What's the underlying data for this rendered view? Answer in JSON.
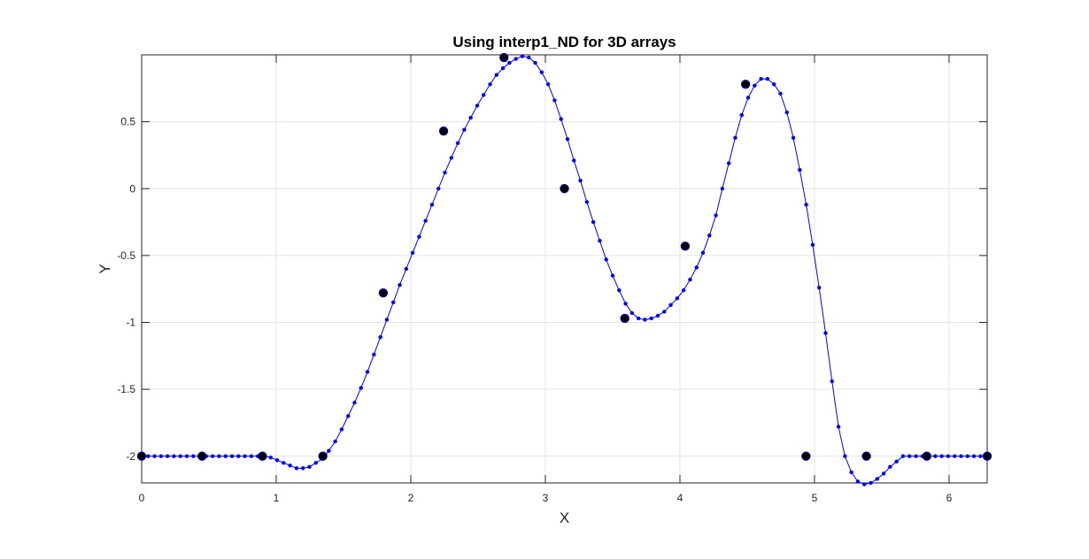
{
  "chart_data": {
    "type": "line",
    "title": "Using interp1_ND for 3D arrays",
    "xlabel": "X",
    "ylabel": "Y",
    "xlim": [
      0,
      6.2832
    ],
    "ylim": [
      -2.2,
      1.0
    ],
    "grid": true,
    "x_ticks": [
      0,
      1,
      2,
      3,
      4,
      5,
      6
    ],
    "x_tick_labels": [
      "0",
      "1",
      "2",
      "3",
      "4",
      "5",
      "6"
    ],
    "y_ticks": [
      -2,
      -1.5,
      -1,
      -0.5,
      0,
      0.5
    ],
    "y_tick_labels": [
      "-2",
      "-1.5",
      "-1",
      "-0.5",
      "0",
      "0.5"
    ],
    "colors": {
      "interpolated": "#0000ff",
      "samples": "#000000",
      "grid": "#e3e3e3",
      "axes": "#262626"
    },
    "series": [
      {
        "role": "interpolated",
        "style": "blue line with dot markers",
        "x": [
          0,
          0.0479,
          0.0959,
          0.1438,
          0.1918,
          0.2397,
          0.2877,
          0.3356,
          0.3836,
          0.4315,
          0.4795,
          0.5274,
          0.5754,
          0.6233,
          0.6713,
          0.7192,
          0.7671,
          0.8151,
          0.863,
          0.911,
          0.9589,
          1.0069,
          1.0548,
          1.1028,
          1.1507,
          1.1987,
          1.2466,
          1.2945,
          1.3425,
          1.3904,
          1.4384,
          1.4863,
          1.5343,
          1.5822,
          1.6302,
          1.6781,
          1.7261,
          1.774,
          1.8219,
          1.8699,
          1.9178,
          1.9658,
          2.0137,
          2.0617,
          2.1096,
          2.1576,
          2.2055,
          2.2535,
          2.3014,
          2.3494,
          2.3973,
          2.4452,
          2.4932,
          2.5411,
          2.5891,
          2.637,
          2.685,
          2.7329,
          2.7809,
          2.8288,
          2.8768,
          2.9247,
          2.9726,
          3.0206,
          3.0685,
          3.1165,
          3.1644,
          3.2124,
          3.2603,
          3.3083,
          3.3562,
          3.4042,
          3.4521,
          3.5,
          3.548,
          3.5959,
          3.6439,
          3.6918,
          3.7398,
          3.7877,
          3.8357,
          3.8836,
          3.9316,
          3.9795,
          4.0275,
          4.0754,
          4.1233,
          4.1713,
          4.2192,
          4.2672,
          4.3151,
          4.3631,
          4.411,
          4.459,
          4.5069,
          4.5549,
          4.6028,
          4.6507,
          4.6987,
          4.7466,
          4.7946,
          4.8425,
          4.8905,
          4.9384,
          4.9864,
          5.0343,
          5.0823,
          5.1302,
          5.1782,
          5.2261,
          5.274,
          5.322,
          5.3699,
          5.4179,
          5.4658,
          5.5138,
          5.5617,
          5.6097,
          5.6576,
          5.7056,
          5.7535,
          5.8014,
          5.8494,
          5.8973,
          5.9453,
          5.9932,
          6.0412,
          6.0891,
          6.1371,
          6.185,
          6.233,
          6.2832
        ],
        "y": [
          -2.0,
          -2.0,
          -2.0,
          -2.0,
          -2.0,
          -2.0,
          -2.0,
          -2.0,
          -2.0,
          -2.0,
          -2.0,
          -2.0,
          -2.0,
          -2.0,
          -2.0,
          -2.0,
          -2.0,
          -2.0,
          -2.0,
          -2.0,
          -2.01,
          -2.03,
          -2.05,
          -2.07,
          -2.09,
          -2.09,
          -2.08,
          -2.05,
          -2.02,
          -1.96,
          -1.89,
          -1.8,
          -1.7,
          -1.6,
          -1.49,
          -1.37,
          -1.24,
          -1.11,
          -0.98,
          -0.85,
          -0.72,
          -0.6,
          -0.48,
          -0.36,
          -0.24,
          -0.12,
          0.0,
          0.12,
          0.23,
          0.34,
          0.44,
          0.53,
          0.62,
          0.7,
          0.78,
          0.85,
          0.9,
          0.94,
          0.97,
          0.99,
          0.98,
          0.94,
          0.87,
          0.78,
          0.66,
          0.52,
          0.37,
          0.21,
          0.06,
          -0.1,
          -0.25,
          -0.39,
          -0.53,
          -0.65,
          -0.76,
          -0.86,
          -0.93,
          -0.97,
          -0.98,
          -0.97,
          -0.95,
          -0.92,
          -0.87,
          -0.82,
          -0.76,
          -0.68,
          -0.59,
          -0.48,
          -0.35,
          -0.2,
          0.0,
          0.19,
          0.38,
          0.55,
          0.68,
          0.77,
          0.82,
          0.82,
          0.78,
          0.71,
          0.57,
          0.38,
          0.14,
          -0.12,
          -0.42,
          -0.74,
          -1.08,
          -1.44,
          -1.78,
          -2.0,
          -2.12,
          -2.19,
          -2.21,
          -2.2,
          -2.17,
          -2.13,
          -2.08,
          -2.04,
          -2.0,
          -2.0,
          -2.0,
          -2.0,
          -2.0,
          -2.0,
          -2.0,
          -2.0,
          -2.0,
          -2.0,
          -2.0,
          -2.0,
          -2.0,
          -2.0
        ]
      },
      {
        "role": "samples",
        "style": "black filled circle markers",
        "x": [
          0,
          0.4488,
          0.8976,
          1.3464,
          1.7952,
          2.244,
          2.6928,
          3.1416,
          3.5904,
          4.0392,
          4.488,
          4.9368,
          5.3856,
          5.8344,
          6.2832
        ],
        "y": [
          -2.0,
          -2.0,
          -2.0,
          -2.0,
          -0.78,
          0.43,
          0.98,
          0.0,
          -0.97,
          -0.43,
          0.78,
          -2.0,
          -2.0,
          -2.0,
          -2.0
        ]
      }
    ]
  }
}
